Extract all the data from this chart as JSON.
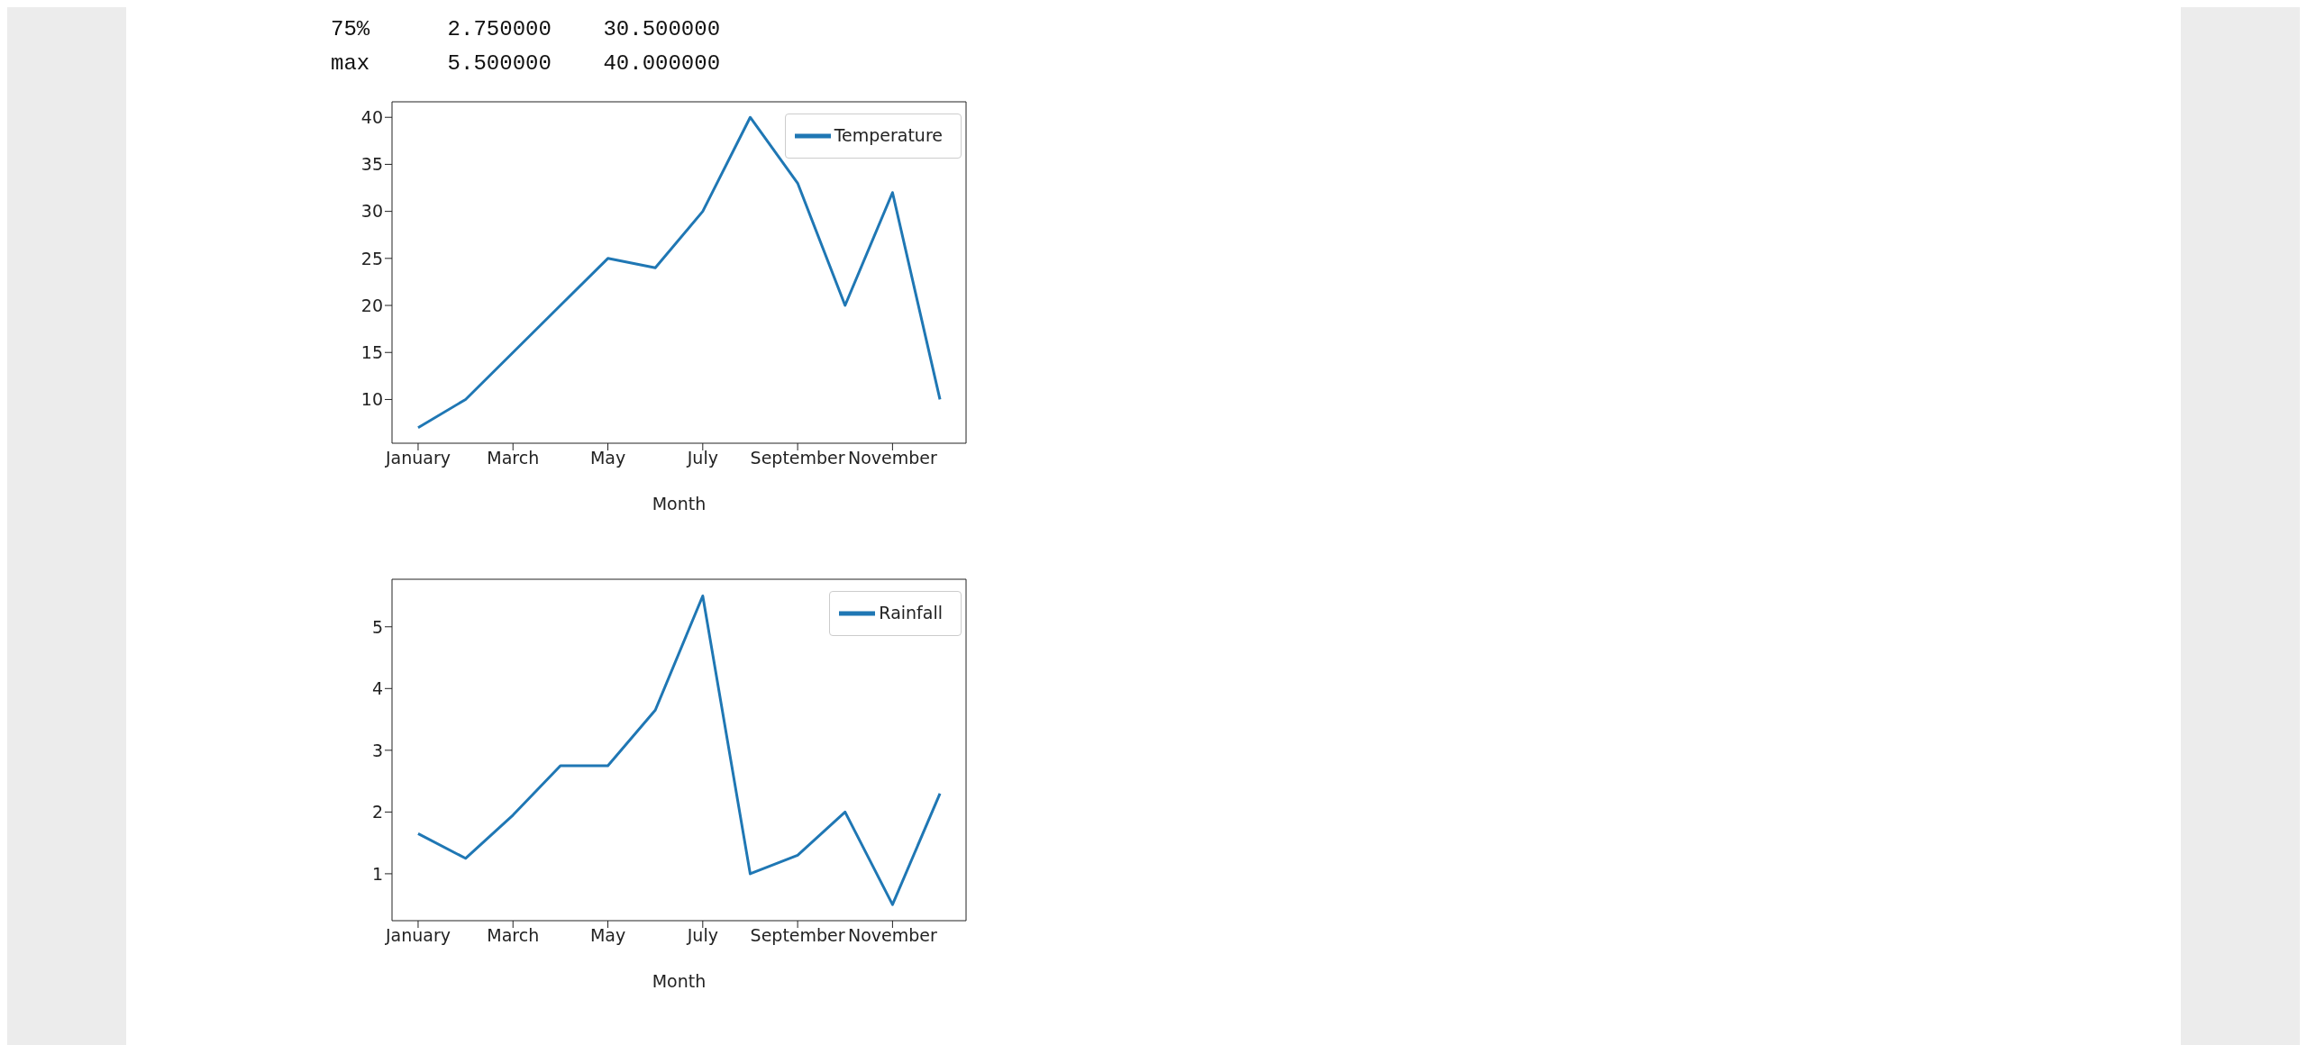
{
  "chart_data": [
    {
      "type": "line",
      "annotations": [
        "75%      2.750000    30.500000",
        "max      5.500000    40.000000"
      ],
      "xlabel": "Month",
      "categories": [
        "January",
        null,
        "March",
        null,
        "May",
        null,
        "July",
        null,
        "September",
        null,
        "November",
        null
      ],
      "series": [
        {
          "name": "Temperature",
          "color": "#1f77b4",
          "values": [
            7,
            10,
            15,
            20,
            25,
            24,
            30,
            40,
            33,
            20,
            32,
            10
          ]
        }
      ],
      "ylim": [
        5.35,
        41.65
      ],
      "yticks": [
        10,
        15,
        20,
        25,
        30,
        35,
        40
      ],
      "legend": "top right",
      "grid": false
    },
    {
      "type": "line",
      "xlabel": "Month",
      "categories": [
        "January",
        null,
        "March",
        null,
        "May",
        null,
        "July",
        null,
        "September",
        null,
        "November",
        null
      ],
      "series": [
        {
          "name": "Rainfall",
          "color": "#1f77b4",
          "values": [
            1.65,
            1.25,
            1.95,
            2.75,
            2.75,
            3.65,
            5.5,
            1.0,
            1.3,
            2.0,
            0.5,
            2.3
          ]
        }
      ],
      "ylim": [
        0.24,
        5.77
      ],
      "yticks": [
        1,
        2,
        3,
        4,
        5
      ],
      "legend": "top right",
      "grid": false
    }
  ]
}
